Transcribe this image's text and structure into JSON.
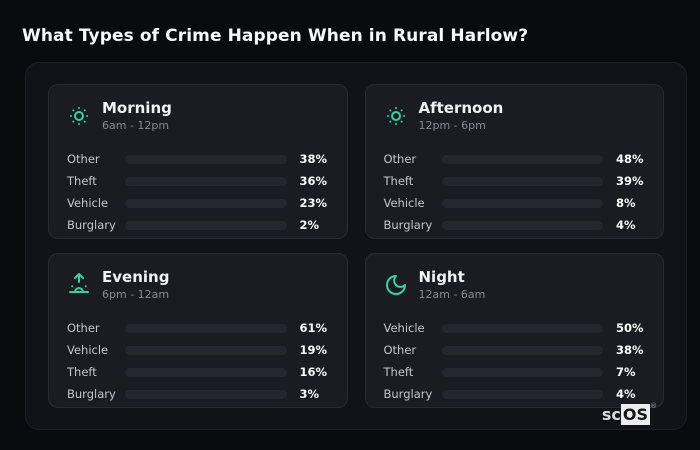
{
  "page": {
    "title": "What Types of Crime Happen When in Rural Harlow?"
  },
  "watermark": {
    "prefix": "sc",
    "boxed": "OS",
    "reg": "®"
  },
  "colors": {
    "accent_icon": "#2ed3a6",
    "other": "#64748b",
    "theft": "#a855f7",
    "vehicle": "#3b82f6",
    "burglary": "#f97316"
  },
  "chart_data": {
    "type": "bar",
    "orientation": "horizontal",
    "title": "What Types of Crime Happen When in Rural Harlow?",
    "unit": "%",
    "xlim": [
      0,
      100
    ],
    "grid": false,
    "legend": "none",
    "panels": [
      {
        "label": "Morning",
        "time_range": "6am - 12pm",
        "icon": "sun-icon",
        "bars": [
          {
            "category": "Other",
            "value": 38,
            "display": "38%",
            "color": "#64748b"
          },
          {
            "category": "Theft",
            "value": 36,
            "display": "36%",
            "color": "#a855f7"
          },
          {
            "category": "Vehicle",
            "value": 23,
            "display": "23%",
            "color": "#3b82f6"
          },
          {
            "category": "Burglary",
            "value": 2,
            "display": "2%",
            "color": "#f97316"
          }
        ]
      },
      {
        "label": "Afternoon",
        "time_range": "12pm - 6pm",
        "icon": "sun-icon",
        "bars": [
          {
            "category": "Other",
            "value": 48,
            "display": "48%",
            "color": "#64748b"
          },
          {
            "category": "Theft",
            "value": 39,
            "display": "39%",
            "color": "#a855f7"
          },
          {
            "category": "Vehicle",
            "value": 8,
            "display": "8%",
            "color": "#3b82f6"
          },
          {
            "category": "Burglary",
            "value": 4,
            "display": "4%",
            "color": "#f97316"
          }
        ]
      },
      {
        "label": "Evening",
        "time_range": "6pm - 12am",
        "icon": "sunrise-icon",
        "bars": [
          {
            "category": "Other",
            "value": 61,
            "display": "61%",
            "color": "#64748b"
          },
          {
            "category": "Vehicle",
            "value": 19,
            "display": "19%",
            "color": "#3b82f6"
          },
          {
            "category": "Theft",
            "value": 16,
            "display": "16%",
            "color": "#a855f7"
          },
          {
            "category": "Burglary",
            "value": 3,
            "display": "3%",
            "color": "#f97316"
          }
        ]
      },
      {
        "label": "Night",
        "time_range": "12am - 6am",
        "icon": "moon-icon",
        "bars": [
          {
            "category": "Vehicle",
            "value": 50,
            "display": "50%",
            "color": "#3b82f6"
          },
          {
            "category": "Other",
            "value": 38,
            "display": "38%",
            "color": "#64748b"
          },
          {
            "category": "Theft",
            "value": 7,
            "display": "7%",
            "color": "#a855f7"
          },
          {
            "category": "Burglary",
            "value": 4,
            "display": "4%",
            "color": "#f97316"
          }
        ]
      }
    ]
  }
}
